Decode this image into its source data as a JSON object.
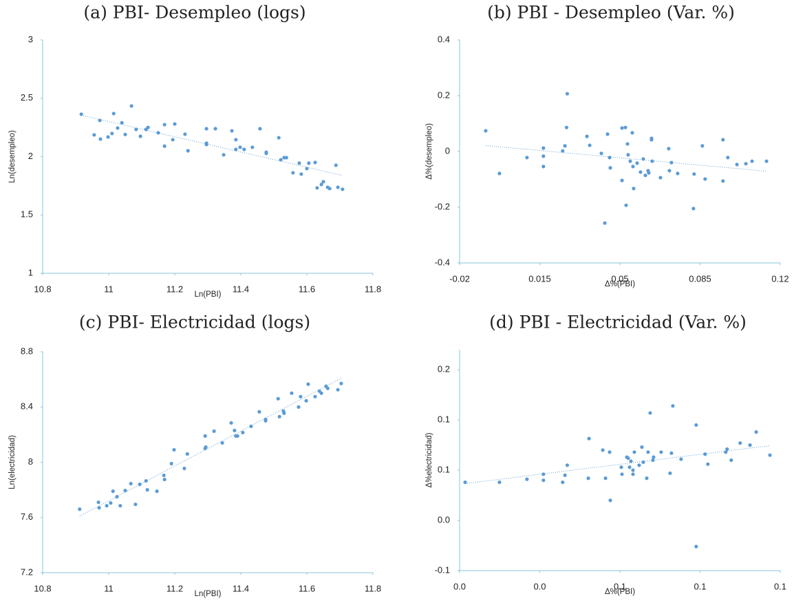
{
  "chart_data": [
    {
      "type": "scatter",
      "title": "(a) PBI- Desempleo (logs)",
      "x_label": "Ln(PBI)",
      "y_label": "Ln(desempleo)",
      "color": "#5b9bd5",
      "trendline": true,
      "xlim": [
        10.8,
        11.8
      ],
      "ylim": [
        1,
        3
      ],
      "xticks": [
        10.8,
        11,
        11.2,
        11.4,
        11.6,
        11.8
      ],
      "yticks": [
        1,
        1.5,
        2,
        2.5,
        3
      ],
      "x": [
        10.917,
        10.956,
        10.973,
        10.975,
        10.998,
        11.01,
        11.015,
        11.027,
        11.04,
        11.05,
        11.069,
        11.083,
        11.096,
        11.113,
        11.119,
        11.15,
        11.169,
        11.169,
        11.194,
        11.2,
        11.231,
        11.24,
        11.296,
        11.296,
        11.296,
        11.323,
        11.348,
        11.373,
        11.385,
        11.385,
        11.398,
        11.41,
        11.435,
        11.458,
        11.477,
        11.477,
        11.515,
        11.521,
        11.531,
        11.538,
        11.558,
        11.577,
        11.583,
        11.6,
        11.606,
        11.625,
        11.631,
        11.644,
        11.65,
        11.663,
        11.669,
        11.688,
        11.694,
        11.708
      ],
      "values": [
        2.363,
        2.186,
        2.31,
        2.15,
        2.168,
        2.198,
        2.369,
        2.245,
        2.29,
        2.19,
        2.434,
        2.233,
        2.174,
        2.233,
        2.25,
        2.204,
        2.274,
        2.09,
        2.145,
        2.28,
        2.192,
        2.05,
        2.239,
        2.115,
        2.103,
        2.239,
        2.015,
        2.221,
        2.145,
        2.062,
        2.08,
        2.062,
        2.08,
        2.239,
        2.038,
        2.027,
        2.162,
        1.973,
        1.991,
        1.991,
        1.861,
        1.944,
        1.85,
        1.897,
        1.944,
        1.95,
        1.732,
        1.761,
        1.785,
        1.737,
        1.726,
        1.926,
        1.737,
        1.72
      ]
    },
    {
      "type": "scatter",
      "title": "(b) PBI - Desempleo (Var. %)",
      "x_label": "Δ%(PBI)",
      "y_label": "Δ%(desempleo)",
      "color": "#5b9bd5",
      "trendline": true,
      "xlim": [
        -0.02,
        0.12
      ],
      "ylim": [
        -0.4,
        0.4
      ],
      "xticks": [
        -0.02,
        0.015,
        0.05,
        0.085,
        0.12
      ],
      "yticks": [
        -0.4,
        -0.2,
        0,
        0.2,
        0.4
      ],
      "x": [
        -0.0086,
        -0.0026,
        0.0094,
        0.0166,
        0.0166,
        0.0166,
        0.025,
        0.026,
        0.0267,
        0.027,
        0.0356,
        0.0368,
        0.0419,
        0.0434,
        0.0446,
        0.0455,
        0.0458,
        0.0509,
        0.0509,
        0.0524,
        0.0527,
        0.0533,
        0.0536,
        0.0545,
        0.0554,
        0.0557,
        0.056,
        0.0575,
        0.059,
        0.0602,
        0.0611,
        0.0623,
        0.0626,
        0.0638,
        0.0638,
        0.0641,
        0.0677,
        0.0713,
        0.0716,
        0.0725,
        0.0752,
        0.0821,
        0.0824,
        0.086,
        0.0872,
        0.095,
        0.095,
        0.0971,
        0.1011,
        0.105,
        0.1077,
        0.114
      ],
      "values": [
        0.074,
        -0.079,
        -0.022,
        0.012,
        -0.017,
        -0.054,
        0.002,
        0.02,
        0.086,
        0.207,
        0.054,
        0.022,
        -0.007,
        -0.257,
        0.062,
        -0.022,
        -0.059,
        -0.104,
        0.084,
        0.086,
        -0.193,
        0.027,
        -0.012,
        -0.035,
        0.067,
        -0.054,
        -0.133,
        -0.042,
        -0.074,
        -0.027,
        -0.086,
        -0.069,
        -0.077,
        0.042,
        0.047,
        -0.035,
        -0.094,
        0.01,
        -0.069,
        -0.04,
        -0.079,
        -0.205,
        -0.081,
        0.02,
        -0.099,
        0.042,
        -0.106,
        -0.022,
        -0.047,
        -0.044,
        -0.035,
        -0.035
      ]
    },
    {
      "type": "scatter",
      "title": "(c) PBI- Electricidad (logs)",
      "x_label": "Ln(PBI)",
      "y_label": "Ln(electricidad)",
      "color": "#5b9bd5",
      "trendline": true,
      "xlim": [
        10.8,
        11.8
      ],
      "ylim": [
        7.2,
        8.8
      ],
      "xticks": [
        10.8,
        11,
        11.2,
        11.4,
        11.6,
        11.8
      ],
      "yticks": [
        7.2,
        7.6,
        8,
        8.4,
        8.8
      ],
      "x": [
        10.912,
        10.969,
        10.971,
        10.994,
        11.006,
        11.013,
        11.025,
        11.035,
        11.05,
        11.067,
        11.081,
        11.094,
        11.113,
        11.117,
        11.146,
        11.167,
        11.169,
        11.19,
        11.198,
        11.229,
        11.238,
        11.292,
        11.292,
        11.294,
        11.319,
        11.344,
        11.371,
        11.381,
        11.385,
        11.39,
        11.406,
        11.431,
        11.456,
        11.475,
        11.475,
        11.513,
        11.517,
        11.529,
        11.531,
        11.554,
        11.575,
        11.581,
        11.598,
        11.604,
        11.625,
        11.638,
        11.644,
        11.658,
        11.663,
        11.694,
        11.704
      ],
      "values": [
        7.66,
        7.71,
        7.67,
        7.685,
        7.705,
        7.79,
        7.75,
        7.685,
        7.795,
        7.845,
        7.695,
        7.84,
        7.865,
        7.8,
        7.79,
        7.905,
        7.875,
        7.99,
        8.09,
        7.955,
        8.06,
        8.19,
        8.1,
        8.11,
        8.225,
        8.14,
        8.285,
        8.23,
        8.19,
        8.19,
        8.215,
        8.26,
        8.365,
        8.31,
        8.3,
        8.46,
        8.33,
        8.37,
        8.355,
        8.5,
        8.4,
        8.475,
        8.445,
        8.565,
        8.475,
        8.515,
        8.5,
        8.55,
        8.535,
        8.525,
        8.57
      ]
    },
    {
      "type": "scatter",
      "title": "(d) PBI - Electricidad (Var. %)",
      "x_label": "Δ%(PBI)",
      "y_label": "Δ%electricidad)",
      "color": "#5b9bd5",
      "trendline": true,
      "xlim": [
        -0.02,
        0.12
      ],
      "ylim": [
        -0.05,
        0.17
      ],
      "xticks": [
        {
          "value": -0.02,
          "label": "0.0"
        },
        {
          "value": 0.015,
          "label": "0.0"
        },
        {
          "value": 0.05,
          "label": "0.1"
        },
        {
          "value": 0.085,
          "label": "0.1"
        },
        {
          "value": 0.12,
          "label": "0.1"
        }
      ],
      "yticks": [
        {
          "value": -0.05,
          "label": "-0.1"
        },
        {
          "value": 0,
          "label": "0.0"
        },
        {
          "value": 0.05,
          "label": "0.1"
        },
        {
          "value": 0.1,
          "label": "0.1"
        },
        {
          "value": 0.15,
          "label": "0.2"
        }
      ],
      "x": [
        -0.0176,
        -0.0026,
        0.0094,
        0.0166,
        0.0166,
        0.025,
        0.026,
        0.027,
        0.0365,
        0.0362,
        0.0425,
        0.0437,
        0.0455,
        0.0458,
        0.0506,
        0.0509,
        0.053,
        0.0536,
        0.0542,
        0.0548,
        0.0557,
        0.0557,
        0.0563,
        0.0584,
        0.0596,
        0.0602,
        0.0617,
        0.0623,
        0.0632,
        0.0644,
        0.0647,
        0.068,
        0.0719,
        0.0725,
        0.0731,
        0.0767,
        0.0833,
        0.0833,
        0.0872,
        0.0884,
        0.0962,
        0.0968,
        0.0986,
        0.1025,
        0.1068,
        0.1095,
        0.1155
      ],
      "values": [
        0.038,
        0.038,
        0.041,
        0.046,
        0.04,
        0.038,
        0.045,
        0.055,
        0.0815,
        0.042,
        0.07,
        0.042,
        0.068,
        0.02,
        0.053,
        0.046,
        0.063,
        0.062,
        0.053,
        0.059,
        0.05,
        0.046,
        0.068,
        0.055,
        0.073,
        0.058,
        0.042,
        0.068,
        0.107,
        0.06,
        0.063,
        0.068,
        0.047,
        0.067,
        0.114,
        0.061,
        0.095,
        -0.026,
        0.066,
        0.056,
        0.068,
        0.071,
        0.06,
        0.077,
        0.075,
        0.088,
        0.065
      ]
    }
  ]
}
